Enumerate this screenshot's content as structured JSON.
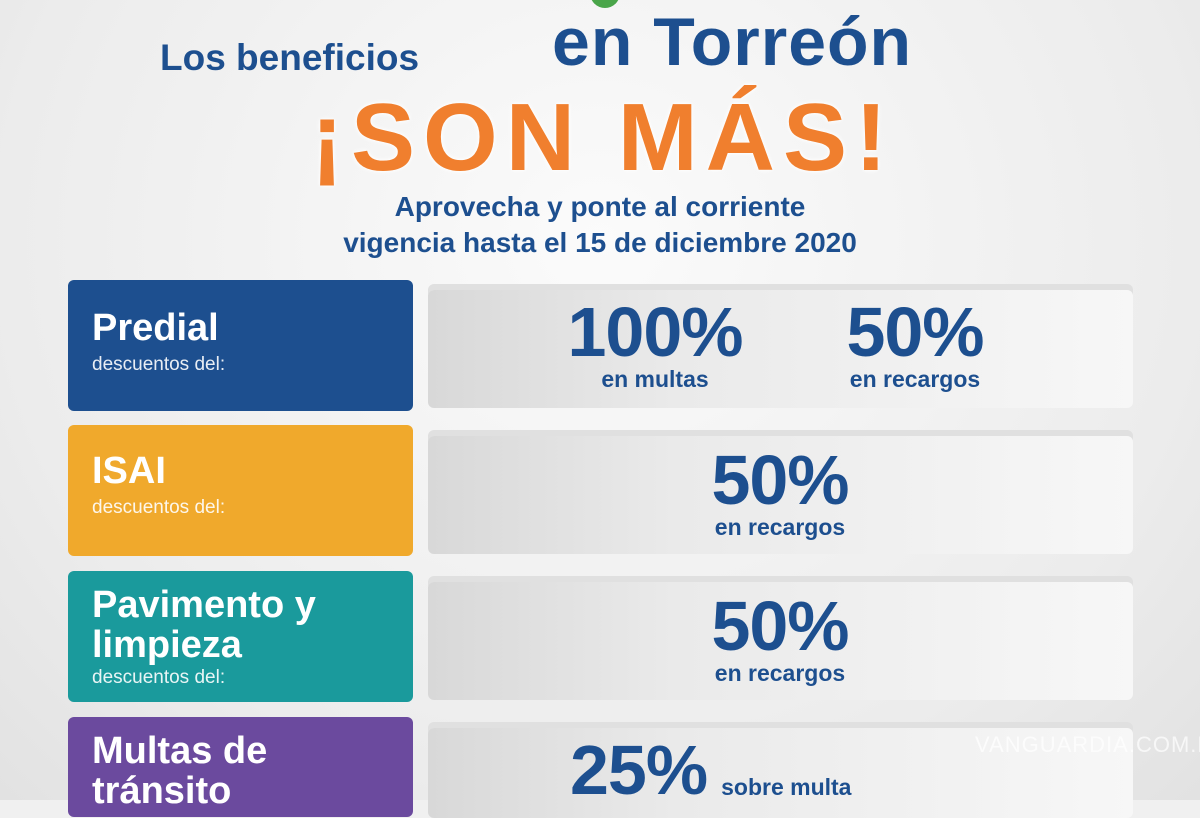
{
  "header": {
    "line1": "Los beneficios",
    "line1b": "en Torreón",
    "headline": "¡SON MÁS!",
    "sub1": "Aprovecha y ponte al corriente",
    "sub2": "vigencia hasta el 15 de diciembre 2020"
  },
  "colors": {
    "blue": "#1d4f8f",
    "orange": "#f07f2e",
    "yellow": "#f0a92c",
    "teal": "#1a9a9c",
    "purple": "#6b4a9e"
  },
  "rows": [
    {
      "name": "Predial",
      "desc": "descuentos del:",
      "values": [
        {
          "pct": "100%",
          "label": "en multas"
        },
        {
          "pct": "50%",
          "label": "en recargos"
        }
      ]
    },
    {
      "name": "ISAI",
      "desc": "descuentos del:",
      "values": [
        {
          "pct": "50%",
          "label": "en recargos"
        }
      ]
    },
    {
      "name": "Pavimento y limpieza",
      "desc": "descuentos del:",
      "values": [
        {
          "pct": "50%",
          "label": "en recargos"
        }
      ]
    },
    {
      "name": "Multas de tránsito",
      "values": [
        {
          "pct": "25%",
          "label": "sobre multa"
        }
      ]
    }
  ],
  "watermark": "VANGUARDIA.COM.MX"
}
